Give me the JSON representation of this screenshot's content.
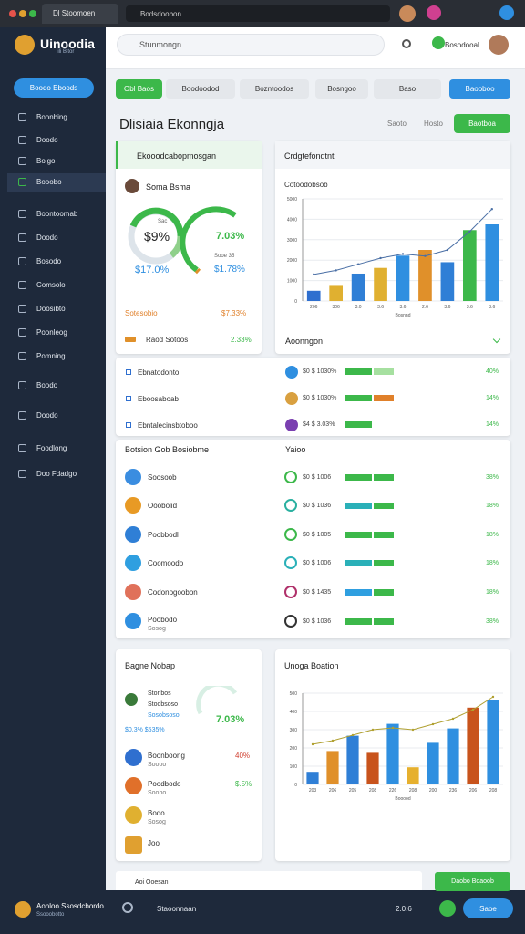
{
  "browser": {
    "tab": "Dl Stoomoen",
    "address": "Bodsdoobon"
  },
  "sidebar": {
    "brand": "Uinoodia",
    "brand_sub": "lili Bitor",
    "button": "Boodo Eboods",
    "menu": [
      "Boonbing",
      "Doodo",
      "Bolgo",
      "Booobo",
      "Boontoomab",
      "Doodo",
      "Bosodo",
      "Comsolo",
      "Doosibto",
      "Poonleog",
      "Pomning",
      "Boodo",
      "Doodo",
      "Foodlong",
      "Doo Fdadgo"
    ]
  },
  "header": {
    "search": "Stunmongn",
    "user": "Bosodooal"
  },
  "tabs": [
    "Obl Baos",
    "Boodoodod",
    "Bozntoodos",
    "Bosngoo",
    "Baso",
    "Baooboo"
  ],
  "page": {
    "title": "Dlisiaia Ekonngja",
    "actions": [
      "Saoto",
      "Hosto",
      "Baotboa"
    ]
  },
  "profile_card": {
    "header": "Ekooodcabopmosgan",
    "name": "Soma Bsma",
    "gauge1_label": "Sac",
    "gauge1_value": "$9%",
    "gauge1_sub": "$17.0%",
    "gauge2_value": "7.03%",
    "gauge2_label": "Sooe 35",
    "gauge2_sub": "$1.78%",
    "row1": [
      "Sotesobio",
      "$7.33%"
    ],
    "row2": [
      "Raod Sotoos",
      "2.33%"
    ]
  },
  "chart1": {
    "title": "Crdgtefondtnt",
    "subtitle": "Cotoodobsob",
    "x_label": "Bosnnd",
    "categories": [
      "206",
      "306",
      "3.0",
      "3.6",
      "3.6",
      "2.6",
      "3.6",
      "3.6",
      "3.6"
    ],
    "values": [
      500,
      740,
      1340,
      1620,
      2220,
      2500,
      1900,
      3470,
      3750
    ],
    "colors": [
      "#2f6fcf",
      "#e0b030",
      "#2f7fd6",
      "#e0b030",
      "#2f8fe0",
      "#e0902a",
      "#2f7fd6",
      "#3cb84a",
      "#2f8fe0"
    ],
    "line": [
      1300,
      1500,
      1800,
      2100,
      2300,
      2200,
      2500,
      3400,
      4500
    ],
    "line_color": "#4a6fa5",
    "ylim": [
      0,
      5000
    ],
    "yticks": [
      0,
      1000,
      2000,
      3000,
      4000,
      5000
    ]
  },
  "section1": "Aoonngon",
  "rows_a": [
    {
      "left": "Ebnatodonto",
      "mid": "$0 $ 1030%",
      "pct": "40%",
      "icon": "#2f8fe0",
      "bars": [
        "#3cb84a",
        "#a6e0a0"
      ]
    },
    {
      "left": "Eboosaboab",
      "mid": "$0 $ 1030%",
      "pct": "14%",
      "icon": "#d9a040",
      "bars": [
        "#3cb84a",
        "#e0802a"
      ]
    },
    {
      "left": "Ebntalecinsbtoboo",
      "mid": "$4 $ 3.03%",
      "pct": "14%",
      "icon": "#7a3fb0",
      "bars": [
        "#3cb84a"
      ]
    }
  ],
  "section2": [
    "Botsion Gob Bosiobme",
    "Yaioo"
  ],
  "rows_b": [
    {
      "left": "Soosoob",
      "licon": "#3a8de0",
      "mid": "$0 $ 1006",
      "pct": "38%",
      "ricon": "#3cb84a",
      "bar": "#3cb84a"
    },
    {
      "left": "Ooobolid",
      "licon": "#e89a25",
      "mid": "$0 $ 1036",
      "pct": "18%",
      "ricon": "#2ab0a0",
      "bar": "#2ab0b8"
    },
    {
      "left": "Poobbodl",
      "licon": "#2f7fd6",
      "mid": "$0 $ 1005",
      "pct": "18%",
      "ricon": "#3cb84a",
      "bar": "#3cb84a"
    },
    {
      "left": "Coomoodo",
      "licon": "#2f9fe0",
      "mid": "$0 $ 1006",
      "pct": "18%",
      "ricon": "#2ab0b8",
      "bar": "#2ab0b8"
    },
    {
      "left": "Codonogoobon",
      "licon": "#e0715a",
      "mid": "$0 $ 1435",
      "pct": "18%",
      "ricon": "#b0306a",
      "bar": "#2f9fe0"
    },
    {
      "left": "Poobodo",
      "sub": "Sosog",
      "licon": "#2f8fe0",
      "mid": "$0 $ 1036",
      "pct": "38%",
      "ricon": "#333333",
      "bar": "#3cb84a"
    }
  ],
  "bottom_card": {
    "title": "Bagne Nobap",
    "item": [
      "Stonbos",
      "Stoobsoso",
      "Sosobsoso"
    ],
    "big": "7.03%",
    "sub": "$0.3% $535%",
    "items": [
      {
        "name": "Boonboong",
        "sub": "Soooo",
        "pct": "40%",
        "color": "#2f6fcf"
      },
      {
        "name": "Poodbodo",
        "sub": "Soobo",
        "pct": "$.5%",
        "color": "#e0702a"
      },
      {
        "name": "Bodo",
        "sub": "Sosog",
        "color": "#e0b030"
      },
      {
        "name": "Joo",
        "color": "#e0a030"
      }
    ]
  },
  "chart2": {
    "title": "Unoga Boation",
    "x_label": "Booood",
    "categories": [
      "203",
      "206",
      "205",
      "208",
      "226",
      "208",
      "200",
      "236",
      "206",
      "208"
    ],
    "values": [
      69,
      183,
      267,
      173,
      332,
      94,
      228,
      307,
      421,
      465
    ],
    "colors": [
      "#2f7fd6",
      "#e0902a",
      "#2f7fd6",
      "#c8531c",
      "#2f8fe0",
      "#e6b02e",
      "#2f8fe0",
      "#2f8fe0",
      "#c8531c",
      "#2f8fe0"
    ],
    "line": [
      220,
      240,
      270,
      300,
      310,
      300,
      330,
      360,
      410,
      480
    ],
    "line_color": "#b0a030",
    "ylim": [
      0,
      500
    ],
    "yticks": [
      0,
      100,
      200,
      300,
      400,
      500
    ]
  },
  "strip": {
    "text": "Aoi Ooesan",
    "button": "Daobo Boaoob"
  },
  "footer": {
    "name": "Aonloo Ssosdcbordo",
    "sub": "Ssooobotto",
    "status": "Staoonnaan",
    "time": "2.0:6",
    "button": "Saoe"
  }
}
